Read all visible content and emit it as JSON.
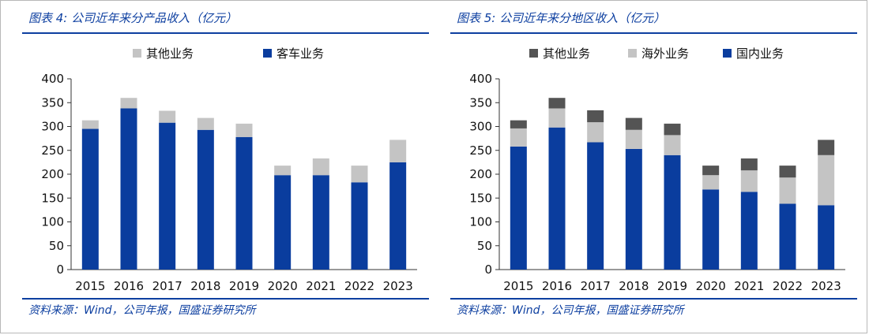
{
  "chart_data": [
    {
      "type": "bar",
      "stacked": true,
      "title": "图表 4:  公司近年来分产品收入（亿元）",
      "source": "资料来源：Wind，公司年报，国盛证券研究所",
      "categories": [
        "2015",
        "2016",
        "2017",
        "2018",
        "2019",
        "2020",
        "2021",
        "2022",
        "2023"
      ],
      "series": [
        {
          "name": "客车业务",
          "color": "#0a3d9e",
          "values": [
            295,
            338,
            308,
            293,
            278,
            198,
            198,
            183,
            225
          ]
        },
        {
          "name": "其他业务",
          "color": "#c4c4c4",
          "values": [
            18,
            22,
            25,
            25,
            28,
            20,
            35,
            35,
            47
          ]
        }
      ],
      "legend_order": [
        "其他业务",
        "客车业务"
      ],
      "ylim": [
        0,
        400
      ],
      "yticks": [
        0,
        50,
        100,
        150,
        200,
        250,
        300,
        350,
        400
      ],
      "legend": "top",
      "grid": false
    },
    {
      "type": "bar",
      "stacked": true,
      "title": "图表 5:  公司近年来分地区收入（亿元）",
      "source": "资料来源：Wind，公司年报，国盛证券研究所",
      "categories": [
        "2015",
        "2016",
        "2017",
        "2018",
        "2019",
        "2020",
        "2021",
        "2022",
        "2023"
      ],
      "series": [
        {
          "name": "国内业务",
          "color": "#0a3d9e",
          "values": [
            258,
            298,
            267,
            253,
            240,
            168,
            163,
            138,
            135
          ]
        },
        {
          "name": "海外业务",
          "color": "#c4c4c4",
          "values": [
            38,
            40,
            42,
            40,
            42,
            30,
            45,
            55,
            105
          ]
        },
        {
          "name": "其他业务",
          "color": "#545454",
          "values": [
            17,
            22,
            25,
            25,
            24,
            20,
            25,
            25,
            32
          ]
        }
      ],
      "legend_order": [
        "其他业务",
        "海外业务",
        "国内业务"
      ],
      "ylim": [
        0,
        400
      ],
      "yticks": [
        0,
        50,
        100,
        150,
        200,
        250,
        300,
        350,
        400
      ],
      "legend": "top",
      "grid": false
    }
  ]
}
